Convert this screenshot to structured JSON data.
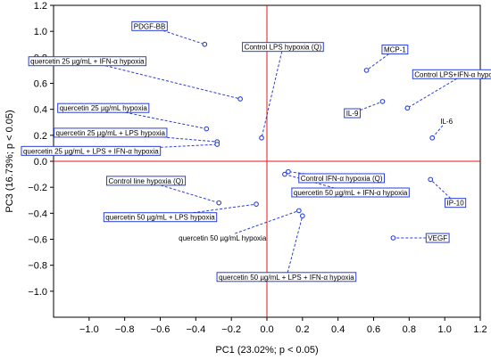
{
  "chart_data": {
    "type": "scatter",
    "xlabel": "PC1 (23.02%; p < 0.05)",
    "ylabel": "PC3 (16.73%; p < 0.05)",
    "xlim": [
      -1.2,
      1.2
    ],
    "ylim": [
      -1.2,
      1.2
    ],
    "xticks": [
      "-1.0",
      "-0.8",
      "-0.6",
      "-0.4",
      "-0.2",
      "0.0",
      "0.2",
      "0.4",
      "0.6",
      "0.8",
      "1.0",
      "1.2"
    ],
    "yticks": [
      "1.2",
      "1.0",
      "0.8",
      "0.6",
      "0.4",
      "0.2",
      "0.0",
      "-0.2",
      "-0.4",
      "-0.6",
      "-0.8",
      "-1.0"
    ],
    "grid": false,
    "reference_lines": {
      "x": 0,
      "y": 0,
      "color": "#e8141a"
    },
    "colors": {
      "points": "#2a3fd6",
      "leaders": "#2a3fd6",
      "boxes": "#2a3fd6"
    },
    "points": [
      {
        "label": "PDGF-BB",
        "x": -0.35,
        "y": 0.9,
        "boxed": true,
        "label_x": -0.66,
        "label_y": 1.04
      },
      {
        "label": "Control LPS hypoxia (Q)",
        "x": -0.03,
        "y": 0.18,
        "boxed": true,
        "label_x": 0.09,
        "label_y": 0.88
      },
      {
        "label": "MCP-1",
        "x": 0.56,
        "y": 0.7,
        "boxed": true,
        "label_x": 0.72,
        "label_y": 0.86
      },
      {
        "label": "quercetin 25 µg/mL + IFN-α hypoxia",
        "x": -0.15,
        "y": 0.48,
        "boxed": true,
        "label_x": -1.01,
        "label_y": 0.77
      },
      {
        "label": "Control LPS+IFN-α hypoxia (Q)",
        "x": 0.79,
        "y": 0.41,
        "boxed": true,
        "label_x": 1.11,
        "label_y": 0.67
      },
      {
        "label": "IL-9",
        "x": 0.65,
        "y": 0.46,
        "boxed": true,
        "label_x": 0.48,
        "label_y": 0.37
      },
      {
        "label": "IL-6",
        "x": 0.93,
        "y": 0.18,
        "boxed": false,
        "label_x": 1.01,
        "label_y": 0.31
      },
      {
        "label": "quercetin 25 µg/mL hypoxia",
        "x": -0.34,
        "y": 0.25,
        "boxed": true,
        "label_x": -0.92,
        "label_y": 0.41
      },
      {
        "label": "quercetin 25 µg/mL + LPS hypoxia",
        "x": -0.28,
        "y": 0.15,
        "boxed": true,
        "label_x": -0.88,
        "label_y": 0.22
      },
      {
        "label": "quercetin 25 µg/mL + LPS + IFN-α hypoxia",
        "x": -0.28,
        "y": 0.13,
        "boxed": true,
        "label_x": -0.99,
        "label_y": 0.08
      },
      {
        "label": "Control line hypoxia (Q)",
        "x": -0.27,
        "y": -0.32,
        "boxed": true,
        "label_x": -0.68,
        "label_y": -0.15
      },
      {
        "label": "Control IFN-α hypoxia (Q)",
        "x": 0.12,
        "y": -0.08,
        "boxed": true,
        "label_x": 0.42,
        "label_y": -0.13
      },
      {
        "label": "quercetin 50 µg/mL + IFN-α hypoxia",
        "x": 0.1,
        "y": -0.1,
        "boxed": true,
        "label_x": 0.47,
        "label_y": -0.24
      },
      {
        "label": "IP-10",
        "x": 0.92,
        "y": -0.14,
        "boxed": true,
        "label_x": 1.06,
        "label_y": -0.32
      },
      {
        "label": "quercetin 50 µg/mL + LPS hypoxia",
        "x": -0.06,
        "y": -0.33,
        "boxed": true,
        "label_x": -0.6,
        "label_y": -0.43
      },
      {
        "label": "quercetin 50 µg/mL hypoxia",
        "x": 0.18,
        "y": -0.38,
        "boxed": false,
        "label_x": -0.25,
        "label_y": -0.59
      },
      {
        "label": "quercetin 50 µg/mL + LPS + IFN-α hypoxia",
        "x": 0.2,
        "y": -0.42,
        "boxed": true,
        "label_x": 0.11,
        "label_y": -0.89
      },
      {
        "label": "VEGF",
        "x": 0.71,
        "y": -0.59,
        "boxed": true,
        "label_x": 0.96,
        "label_y": -0.59
      }
    ]
  }
}
